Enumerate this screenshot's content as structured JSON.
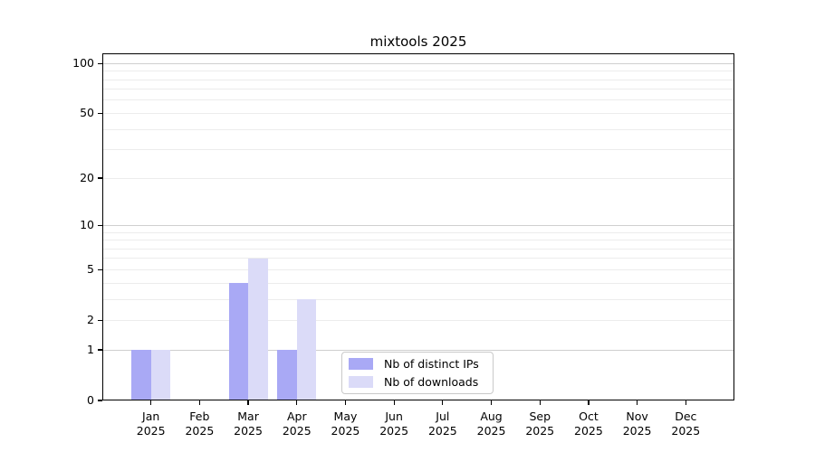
{
  "chart_data": {
    "type": "bar",
    "title": "mixtools 2025",
    "x_axis": {
      "categories": [
        "Jan",
        "Feb",
        "Mar",
        "Apr",
        "May",
        "Jun",
        "Jul",
        "Aug",
        "Sep",
        "Oct",
        "Nov",
        "Dec"
      ],
      "year_label": "2025"
    },
    "y_axis": {
      "scale": "log1p",
      "tick_labels": [
        100,
        50,
        20,
        10,
        5,
        2,
        1,
        0
      ],
      "major_gridlines": [
        1,
        10,
        100
      ],
      "minor_gridlines": [
        2,
        3,
        4,
        5,
        6,
        7,
        8,
        9,
        20,
        30,
        40,
        50,
        60,
        70,
        80,
        90
      ],
      "ylim": [
        0,
        115
      ],
      "grid": true
    },
    "series": [
      {
        "name": "Nb of distinct IPs",
        "color": "#a9a9f5",
        "values": [
          1,
          0,
          4,
          1,
          0,
          0,
          0,
          0,
          0,
          0,
          0,
          0
        ]
      },
      {
        "name": "Nb of downloads",
        "color": "#dbdbf8",
        "values": [
          1,
          0,
          6,
          3,
          0,
          0,
          0,
          0,
          0,
          0,
          0,
          0
        ]
      }
    ],
    "legend": {
      "position": "lower center"
    }
  },
  "style": {
    "background": "#ffffff",
    "text_color": "#000000",
    "axis_color": "#000000",
    "grid_major_color": "#cfcfcf",
    "grid_minor_color": "#ececec",
    "legend_border_color": "#c9c9c9"
  }
}
